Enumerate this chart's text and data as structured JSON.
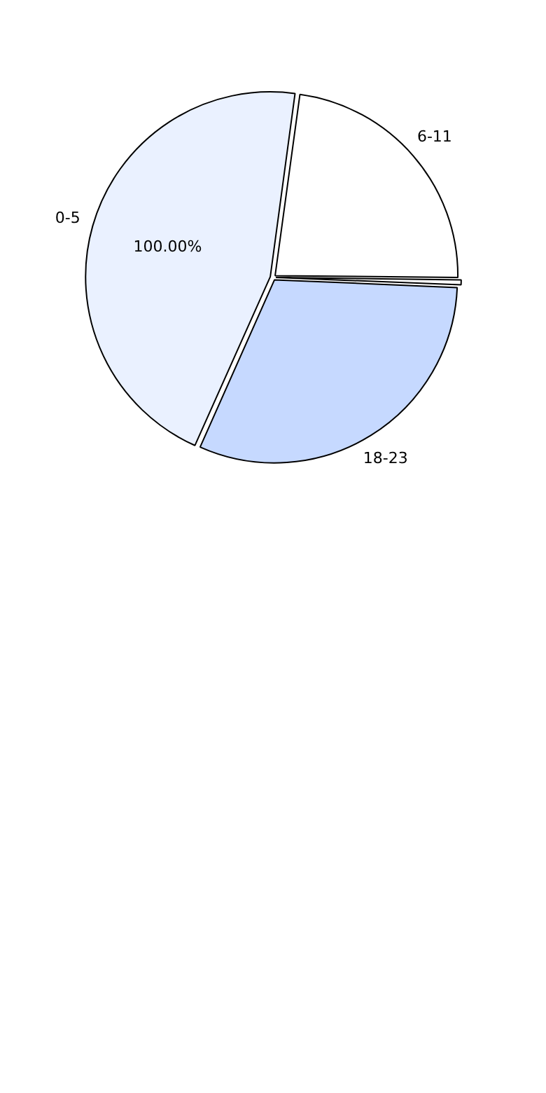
{
  "chart_data": {
    "type": "pie",
    "categories": [
      "0-5",
      "6-11",
      null,
      "18-23"
    ],
    "values": [
      45.5,
      23,
      0.5,
      31
    ],
    "colors": [
      "#eaf1ff",
      "#ffffff",
      "#ffffff",
      "#c6d9ff"
    ],
    "annotations": [
      "100.00%"
    ],
    "legend": false
  }
}
